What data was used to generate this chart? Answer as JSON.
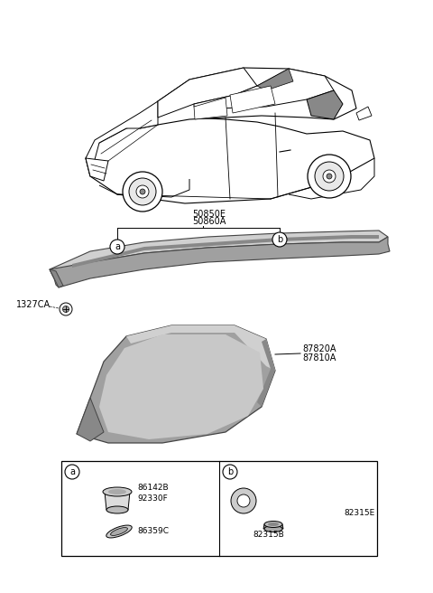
{
  "bg_color": "#ffffff",
  "gray_fill": "#b8b8b8",
  "gray_light": "#d0d0d0",
  "gray_dark": "#888888",
  "gray_med": "#a0a0a0",
  "stroke_color": "#444444",
  "black": "#000000",
  "labels": {
    "50850E": "50850E",
    "50860A": "50860A",
    "87820A": "87820A",
    "87810A": "87810A",
    "1327CA": "1327CA",
    "86142B": "86142B",
    "92330F": "92330F",
    "86359C": "86359C",
    "82315B": "82315B",
    "82315E": "82315E"
  }
}
